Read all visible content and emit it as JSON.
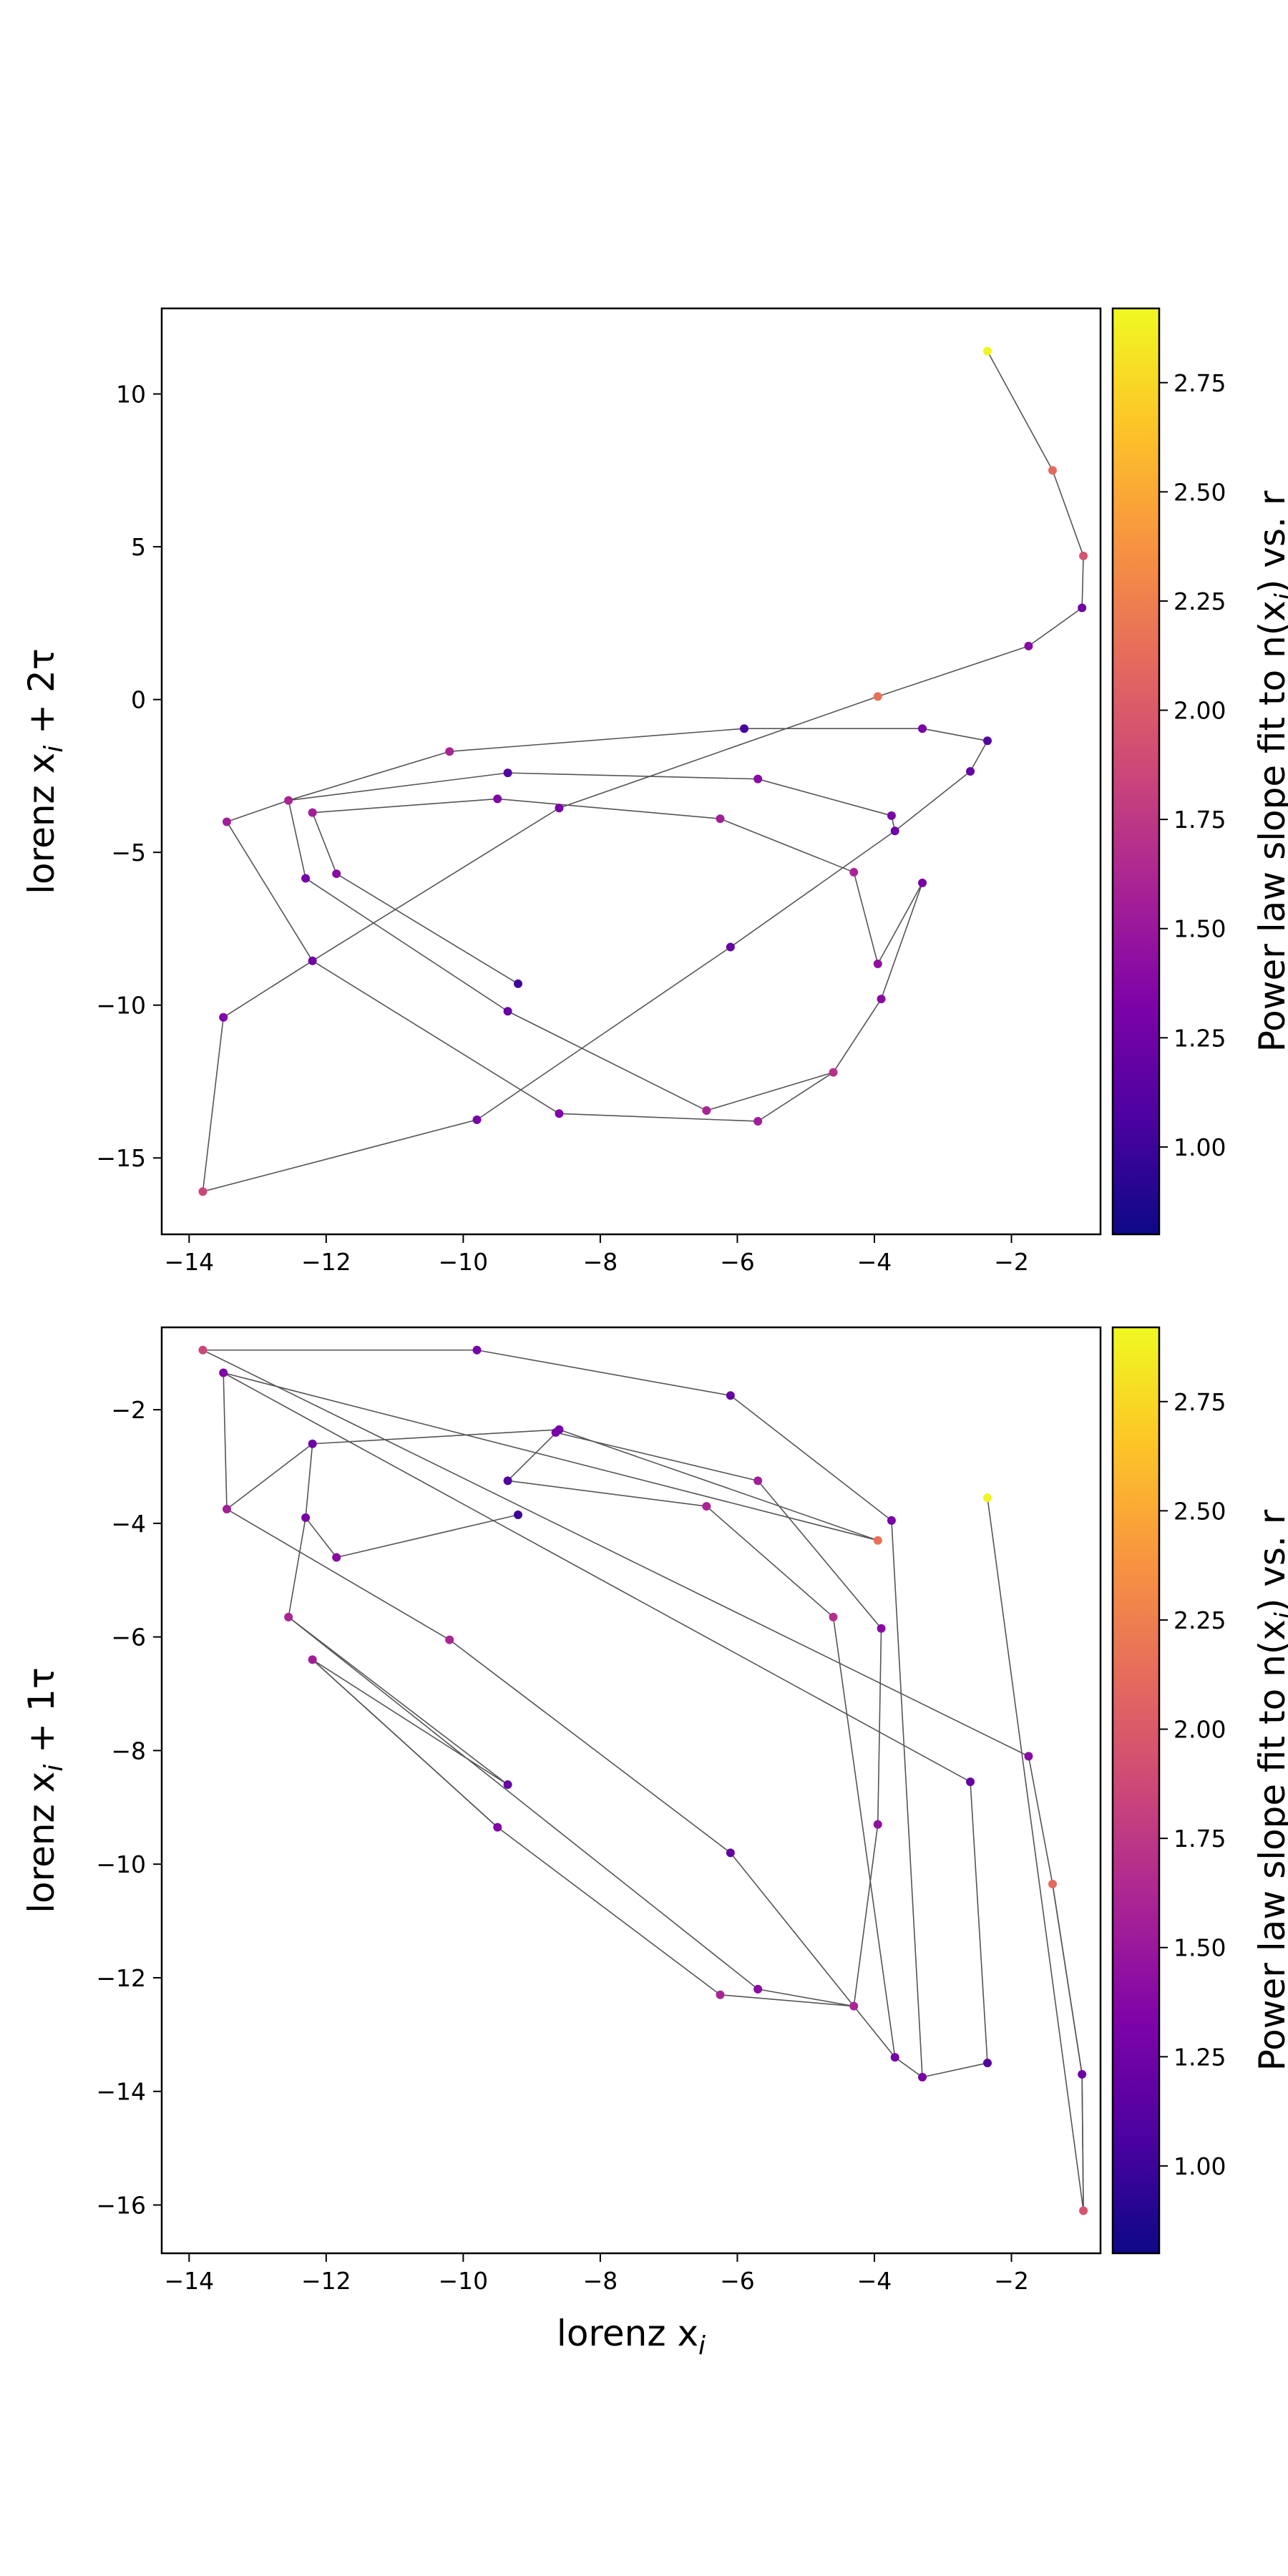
{
  "chart_data": [
    {
      "type": "scatter",
      "connected": true,
      "xlabel": "lorenz x",
      "xlabel_sub": "i",
      "ylabel": "lorenz x",
      "ylabel_sub": "i",
      "ylabel_suffix": " + 2τ",
      "xlim": [
        -14.4,
        -0.7
      ],
      "ylim": [
        -17.5,
        12.8
      ],
      "xticks": [
        -14,
        -12,
        -10,
        -8,
        -6,
        -4,
        -2
      ],
      "yticks": [
        -15,
        -10,
        -5,
        0,
        5,
        10
      ],
      "points": [
        {
          "x": -2.35,
          "y": 11.4,
          "c": 2.9
        },
        {
          "x": -1.4,
          "y": 7.5,
          "c": 2.1
        },
        {
          "x": -0.95,
          "y": 4.7,
          "c": 1.95
        },
        {
          "x": -0.97,
          "y": 3.0,
          "c": 1.25
        },
        {
          "x": -1.75,
          "y": 1.75,
          "c": 1.4
        },
        {
          "x": -3.95,
          "y": 0.1,
          "c": 2.15
        },
        {
          "x": -8.6,
          "y": -3.55,
          "c": 1.3
        },
        {
          "x": -12.2,
          "y": -8.55,
          "c": 1.25
        },
        {
          "x": -13.5,
          "y": -10.4,
          "c": 1.35
        },
        {
          "x": -13.8,
          "y": -16.1,
          "c": 1.85
        },
        {
          "x": -9.8,
          "y": -13.75,
          "c": 1.3
        },
        {
          "x": -6.1,
          "y": -8.1,
          "c": 1.2
        },
        {
          "x": -3.7,
          "y": -4.3,
          "c": 1.25
        },
        {
          "x": -3.75,
          "y": -3.8,
          "c": 1.3
        },
        {
          "x": -5.7,
          "y": -2.6,
          "c": 1.4
        },
        {
          "x": -9.35,
          "y": -2.4,
          "c": 1.1
        },
        {
          "x": -12.55,
          "y": -3.3,
          "c": 1.6
        },
        {
          "x": -12.3,
          "y": -5.85,
          "c": 1.3
        },
        {
          "x": -9.35,
          "y": -10.2,
          "c": 1.2
        },
        {
          "x": -6.45,
          "y": -13.45,
          "c": 1.6
        },
        {
          "x": -4.6,
          "y": -12.2,
          "c": 1.7
        },
        {
          "x": -3.9,
          "y": -9.8,
          "c": 1.4
        },
        {
          "x": -3.3,
          "y": -6.0,
          "c": 1.3
        },
        {
          "x": -3.95,
          "y": -8.65,
          "c": 1.45
        },
        {
          "x": -4.3,
          "y": -5.65,
          "c": 1.6
        },
        {
          "x": -6.25,
          "y": -3.9,
          "c": 1.55
        },
        {
          "x": -9.5,
          "y": -3.25,
          "c": 1.35
        },
        {
          "x": -12.2,
          "y": -3.7,
          "c": 1.55
        },
        {
          "x": -11.85,
          "y": -5.7,
          "c": 1.4
        },
        {
          "x": -9.2,
          "y": -9.3,
          "c": 1.0
        },
        {
          "x": -13.45,
          "y": -4.0,
          "c": 1.55
        },
        {
          "x": -8.6,
          "y": -13.55,
          "c": 1.35
        },
        {
          "x": -5.7,
          "y": -13.8,
          "c": 1.55
        },
        {
          "x": -2.6,
          "y": -2.35,
          "c": 1.2
        },
        {
          "x": -2.35,
          "y": -1.35,
          "c": 1.1
        },
        {
          "x": -3.3,
          "y": -0.95,
          "c": 1.3
        },
        {
          "x": -5.9,
          "y": -0.95,
          "c": 1.05
        },
        {
          "x": -10.2,
          "y": -1.7,
          "c": 1.6
        }
      ],
      "path_order": [
        0,
        1,
        2,
        3,
        4,
        5,
        6,
        7,
        8,
        9,
        10,
        11,
        12,
        13,
        14,
        15,
        16,
        17,
        18,
        19,
        20,
        21,
        22,
        23,
        24,
        25,
        26,
        27,
        28,
        29
      ],
      "path_extra": [
        [
          16,
          30
        ],
        [
          30,
          7
        ],
        [
          7,
          31
        ],
        [
          31,
          32
        ],
        [
          32,
          20
        ],
        [
          12,
          33
        ],
        [
          33,
          34
        ],
        [
          34,
          35
        ],
        [
          35,
          36
        ],
        [
          36,
          37
        ],
        [
          37,
          16
        ]
      ],
      "colorbar": {
        "label": "Power law slope fit to n(x",
        "label_tail": ") vs. r",
        "min": 0.8,
        "max": 2.92,
        "ticks": [
          "1.00",
          "1.25",
          "1.50",
          "1.75",
          "2.00",
          "2.25",
          "2.50",
          "2.75"
        ],
        "colormap": "plasma"
      }
    },
    {
      "type": "scatter",
      "connected": true,
      "xlabel": "lorenz x",
      "xlabel_sub": "i",
      "ylabel": "lorenz x",
      "ylabel_sub": "i",
      "ylabel_suffix": " + 1τ",
      "xlim": [
        -14.4,
        -0.7
      ],
      "ylim": [
        -16.85,
        -0.55
      ],
      "xticks": [
        -14,
        -12,
        -10,
        -8,
        -6,
        -4,
        -2
      ],
      "yticks": [
        -16,
        -14,
        -12,
        -10,
        -8,
        -6,
        -4,
        -2
      ],
      "points": [
        {
          "x": -2.35,
          "y": -3.55,
          "c": 2.9
        },
        {
          "x": -1.75,
          "y": -8.1,
          "c": 1.4
        },
        {
          "x": -1.4,
          "y": -10.35,
          "c": 2.1
        },
        {
          "x": -0.97,
          "y": -13.7,
          "c": 1.25
        },
        {
          "x": -0.95,
          "y": -16.1,
          "c": 1.95
        },
        {
          "x": -3.95,
          "y": -4.3,
          "c": 2.15
        },
        {
          "x": -6.1,
          "y": -9.8,
          "c": 1.2
        },
        {
          "x": -3.7,
          "y": -13.4,
          "c": 1.3
        },
        {
          "x": -3.3,
          "y": -13.75,
          "c": 1.3
        },
        {
          "x": -2.35,
          "y": -13.5,
          "c": 1.1
        },
        {
          "x": -2.6,
          "y": -8.55,
          "c": 1.2
        },
        {
          "x": -3.75,
          "y": -3.95,
          "c": 1.3
        },
        {
          "x": -6.1,
          "y": -1.75,
          "c": 1.2
        },
        {
          "x": -9.8,
          "y": -0.95,
          "c": 1.3
        },
        {
          "x": -13.8,
          "y": -0.95,
          "c": 1.85
        },
        {
          "x": -13.5,
          "y": -1.35,
          "c": 1.35
        },
        {
          "x": -8.6,
          "y": -2.35,
          "c": 1.3
        },
        {
          "x": -8.65,
          "y": -2.4,
          "c": 1.3
        },
        {
          "x": -12.2,
          "y": -2.6,
          "c": 1.25
        },
        {
          "x": -13.45,
          "y": -3.75,
          "c": 1.55
        },
        {
          "x": -10.2,
          "y": -6.05,
          "c": 1.6
        },
        {
          "x": -5.7,
          "y": -12.2,
          "c": 1.4
        },
        {
          "x": -4.3,
          "y": -12.5,
          "c": 1.6
        },
        {
          "x": -3.95,
          "y": -9.3,
          "c": 1.45
        },
        {
          "x": -3.9,
          "y": -5.85,
          "c": 1.4
        },
        {
          "x": -5.7,
          "y": -3.25,
          "c": 1.55
        },
        {
          "x": -9.35,
          "y": -3.25,
          "c": 1.1
        },
        {
          "x": -12.3,
          "y": -3.9,
          "c": 1.3
        },
        {
          "x": -12.55,
          "y": -5.65,
          "c": 1.6
        },
        {
          "x": -9.35,
          "y": -8.6,
          "c": 1.2
        },
        {
          "x": -12.2,
          "y": -6.4,
          "c": 1.55
        },
        {
          "x": -9.5,
          "y": -9.35,
          "c": 1.35
        },
        {
          "x": -6.25,
          "y": -12.3,
          "c": 1.6
        },
        {
          "x": -4.6,
          "y": -5.65,
          "c": 1.7
        },
        {
          "x": -6.45,
          "y": -3.7,
          "c": 1.6
        },
        {
          "x": -11.85,
          "y": -4.6,
          "c": 1.4
        },
        {
          "x": -9.2,
          "y": -3.85,
          "c": 1.0
        }
      ],
      "path_order": [
        0,
        4,
        3,
        2,
        1,
        5,
        16,
        18,
        19,
        6,
        7,
        8,
        9,
        10,
        11,
        12,
        13,
        14,
        15,
        25,
        24,
        23,
        22,
        21,
        29,
        28,
        27,
        26,
        17,
        0
      ],
      "path_extra": [],
      "path_order_explicit": [
        [
          0,
          4
        ],
        [
          4,
          3
        ],
        [
          3,
          2
        ],
        [
          2,
          1
        ],
        [
          1,
          14
        ],
        [
          14,
          13
        ],
        [
          13,
          12
        ],
        [
          12,
          11
        ],
        [
          11,
          8
        ],
        [
          8,
          9
        ],
        [
          9,
          10
        ],
        [
          10,
          15
        ],
        [
          15,
          5
        ],
        [
          5,
          16
        ],
        [
          16,
          18
        ],
        [
          18,
          27
        ],
        [
          27,
          28
        ],
        [
          28,
          21
        ],
        [
          21,
          22
        ],
        [
          22,
          23
        ],
        [
          23,
          24
        ],
        [
          24,
          25
        ],
        [
          25,
          17
        ],
        [
          17,
          17
        ],
        [
          16,
          26
        ],
        [
          26,
          34
        ],
        [
          34,
          33
        ],
        [
          33,
          7
        ],
        [
          7,
          8
        ],
        [
          19,
          20
        ],
        [
          20,
          6
        ],
        [
          6,
          7
        ],
        [
          19,
          15
        ],
        [
          28,
          29
        ],
        [
          29,
          30
        ],
        [
          30,
          31
        ],
        [
          31,
          32
        ],
        [
          32,
          22
        ],
        [
          27,
          35
        ],
        [
          35,
          36
        ],
        [
          18,
          19
        ],
        [
          30,
          31
        ],
        [
          3,
          4
        ],
        [
          2,
          3
        ]
      ],
      "colorbar": {
        "label": "Power law slope fit to n(x",
        "label_tail": ") vs. r",
        "min": 0.8,
        "max": 2.92,
        "ticks": [
          "1.00",
          "1.25",
          "1.50",
          "1.75",
          "2.00",
          "2.25",
          "2.50",
          "2.75"
        ],
        "colormap": "plasma"
      }
    }
  ]
}
